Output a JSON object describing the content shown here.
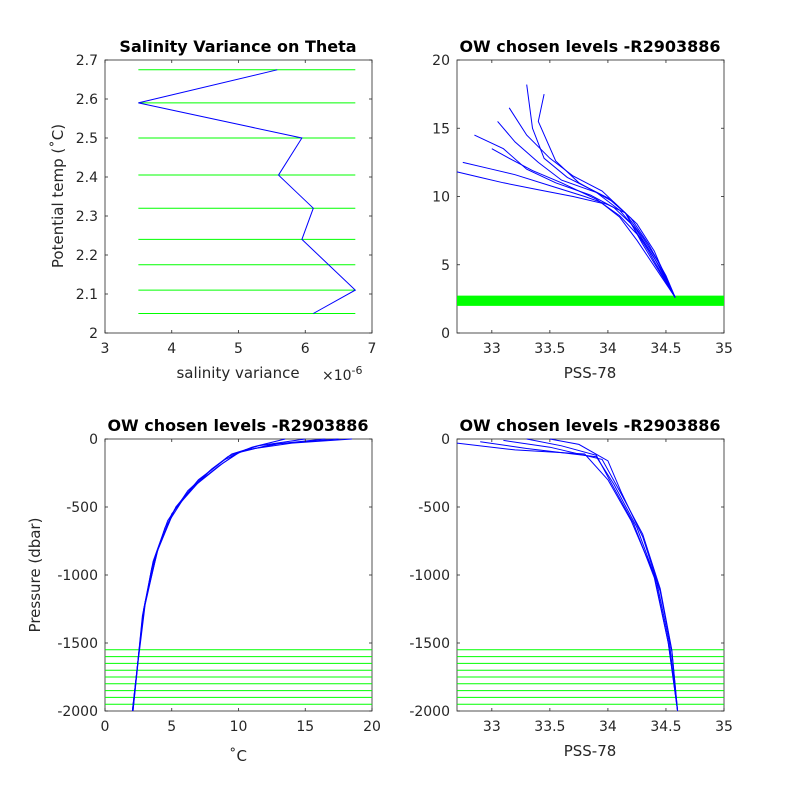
{
  "colors": {
    "profile": "#0000ff",
    "level": "#00ff00",
    "axis": "#262626"
  },
  "chart_data": [
    {
      "id": "variance",
      "type": "line",
      "title": "Salinity Variance on Theta",
      "xlabel": "salinity variance",
      "xexp": "×10",
      "xexp_sup": "-6",
      "ylabel": "Potential temp (˚C)",
      "xlim": [
        3,
        7
      ],
      "ylim": [
        2,
        2.7
      ],
      "xticks": [
        3,
        4,
        5,
        6,
        7
      ],
      "xtick_labels": [
        "3",
        "4",
        "5",
        "6",
        "7"
      ],
      "yticks": [
        2,
        2.1,
        2.2,
        2.3,
        2.4,
        2.5,
        2.6,
        2.7
      ],
      "ytick_labels": [
        "2",
        "2.1",
        "2.2",
        "2.3",
        "2.4",
        "2.5",
        "2.6",
        "2.7"
      ],
      "series": [
        {
          "x": [
            5.58,
            3.5,
            5.95,
            5.6,
            6.12,
            5.95,
            6.75,
            6.12
          ],
          "y": [
            2.675,
            2.59,
            2.5,
            2.405,
            2.32,
            2.24,
            2.11,
            2.05
          ]
        }
      ],
      "chosen_levels": [
        2.675,
        2.59,
        2.5,
        2.405,
        2.32,
        2.24,
        2.175,
        2.11,
        2.05
      ],
      "level_xrange": [
        3.5,
        6.75
      ]
    },
    {
      "id": "theta-sal",
      "type": "line",
      "title": "OW chosen levels -R2903886",
      "xlabel": "PSS-78",
      "ylabel": "",
      "xlim": [
        32.7,
        35
      ],
      "ylim": [
        0,
        20
      ],
      "xticks": [
        33,
        33.5,
        34,
        34.5,
        35
      ],
      "xtick_labels": [
        "33",
        "33.5",
        "34",
        "34.5",
        "35"
      ],
      "yticks": [
        0,
        5,
        10,
        15,
        20
      ],
      "ytick_labels": [
        "0",
        "5",
        "10",
        "15",
        "20"
      ],
      "series": [
        {
          "x": [
            32.75,
            33.0,
            33.2,
            33.5,
            33.8,
            34.0,
            34.15,
            34.3,
            34.58
          ],
          "y": [
            12.5,
            12.0,
            11.6,
            10.8,
            10.0,
            9.4,
            8.8,
            6.5,
            2.6
          ]
        },
        {
          "x": [
            32.85,
            33.1,
            33.3,
            33.55,
            33.85,
            34.05,
            34.2,
            34.35,
            34.58
          ],
          "y": [
            14.5,
            13.5,
            12.0,
            11.0,
            10.1,
            9.2,
            8.0,
            6.0,
            2.6
          ]
        },
        {
          "x": [
            33.05,
            33.2,
            33.4,
            33.6,
            33.9,
            34.1,
            34.25,
            34.4,
            34.58
          ],
          "y": [
            15.5,
            14.0,
            12.5,
            11.2,
            10.3,
            9.0,
            7.5,
            5.5,
            2.6
          ]
        },
        {
          "x": [
            33.15,
            33.3,
            33.5,
            33.7,
            33.95,
            34.15,
            34.3,
            34.45,
            34.58
          ],
          "y": [
            16.5,
            14.5,
            12.8,
            11.5,
            10.4,
            8.8,
            7.0,
            5.0,
            2.6
          ]
        },
        {
          "x": [
            33.3,
            33.35,
            33.45,
            33.65,
            34.0,
            34.2,
            34.35,
            34.5,
            34.58
          ],
          "y": [
            18.2,
            15.0,
            12.8,
            11.4,
            9.9,
            8.4,
            6.5,
            4.2,
            2.6
          ]
        },
        {
          "x": [
            33.45,
            33.4,
            33.55,
            33.75,
            34.05,
            34.25,
            34.4,
            34.5,
            34.58
          ],
          "y": [
            17.5,
            15.5,
            12.6,
            11.0,
            9.6,
            8.0,
            6.0,
            4.0,
            2.6
          ]
        },
        {
          "x": [
            32.7,
            32.9,
            33.1,
            33.4,
            33.7,
            33.95,
            34.1,
            34.25,
            34.58
          ],
          "y": [
            11.8,
            11.4,
            11.0,
            10.5,
            10.0,
            9.5,
            8.5,
            6.8,
            2.6
          ]
        },
        {
          "x": [
            33.0,
            33.15,
            33.35,
            33.6,
            33.9,
            34.1,
            34.3,
            34.45,
            34.58
          ],
          "y": [
            13.5,
            12.8,
            11.9,
            11.0,
            9.8,
            8.6,
            6.8,
            4.8,
            2.6
          ]
        }
      ],
      "chosen_levels": [
        2.05,
        2.11,
        2.175,
        2.24,
        2.32,
        2.405,
        2.5,
        2.59,
        2.675
      ],
      "level_xrange": [
        32.7,
        35
      ]
    },
    {
      "id": "temp-pres",
      "type": "line",
      "title": "OW chosen levels -R2903886",
      "xlabel": "˚C",
      "ylabel": "Pressure (dbar)",
      "xlim": [
        0,
        20
      ],
      "ylim": [
        -2000,
        0
      ],
      "xticks": [
        0,
        5,
        10,
        15,
        20
      ],
      "xtick_labels": [
        "0",
        "5",
        "10",
        "15",
        "20"
      ],
      "yticks": [
        -2000,
        -1500,
        -1000,
        -500,
        0
      ],
      "ytick_labels": [
        "-2000",
        "-1500",
        "-1000",
        "-500",
        "0"
      ],
      "series": [
        {
          "x": [
            18.5,
            14.0,
            10.5,
            9.0,
            7.0,
            5.3,
            4.0,
            3.0,
            2.5,
            2.1
          ],
          "y": [
            0,
            -30,
            -80,
            -150,
            -300,
            -500,
            -800,
            -1200,
            -1600,
            -2000
          ]
        },
        {
          "x": [
            16.5,
            12.5,
            10.0,
            8.5,
            6.6,
            5.0,
            3.8,
            2.9,
            2.45,
            2.05
          ],
          "y": [
            0,
            -40,
            -100,
            -200,
            -350,
            -550,
            -850,
            -1250,
            -1650,
            -2000
          ]
        },
        {
          "x": [
            15.0,
            11.5,
            9.5,
            8.0,
            6.2,
            4.7,
            3.6,
            2.8,
            2.4,
            2.05
          ],
          "y": [
            0,
            -50,
            -110,
            -220,
            -380,
            -600,
            -900,
            -1300,
            -1700,
            -2000
          ]
        },
        {
          "x": [
            17.5,
            13.0,
            10.2,
            8.8,
            6.9,
            5.2,
            3.9,
            3.0,
            2.5,
            2.1
          ],
          "y": [
            0,
            -35,
            -90,
            -180,
            -330,
            -520,
            -830,
            -1220,
            -1620,
            -2000
          ]
        },
        {
          "x": [
            13.5,
            11.0,
            9.2,
            7.7,
            6.0,
            4.5,
            3.5,
            2.8,
            2.4,
            2.05
          ],
          "y": [
            0,
            -60,
            -130,
            -250,
            -420,
            -650,
            -950,
            -1320,
            -1700,
            -2000
          ]
        }
      ],
      "chosen_levels": [
        -1550,
        -1600,
        -1650,
        -1700,
        -1750,
        -1800,
        -1850,
        -1900,
        -1950
      ],
      "level_xrange": [
        0,
        20
      ]
    },
    {
      "id": "sal-pres",
      "type": "line",
      "title": "OW chosen levels -R2903886",
      "xlabel": "PSS-78",
      "ylabel": "",
      "xlim": [
        32.7,
        35
      ],
      "ylim": [
        -2000,
        0
      ],
      "xticks": [
        33,
        33.5,
        34,
        34.5,
        35
      ],
      "xtick_labels": [
        "33",
        "33.5",
        "34",
        "34.5",
        "35"
      ],
      "yticks": [
        -2000,
        -1500,
        -1000,
        -500,
        0
      ],
      "ytick_labels": [
        "-2000",
        "-1500",
        "-1000",
        "-500",
        "0"
      ],
      "series": [
        {
          "x": [
            32.7,
            33.2,
            33.8,
            34.0,
            34.2,
            34.4,
            34.52,
            34.6
          ],
          "y": [
            -30,
            -80,
            -110,
            -300,
            -600,
            -1000,
            -1500,
            -2000
          ]
        },
        {
          "x": [
            32.9,
            33.3,
            33.9,
            34.05,
            34.25,
            34.42,
            34.53,
            34.6
          ],
          "y": [
            -20,
            -70,
            -130,
            -330,
            -650,
            -1050,
            -1500,
            -2000
          ]
        },
        {
          "x": [
            33.1,
            33.5,
            33.95,
            34.1,
            34.3,
            34.45,
            34.55,
            34.6
          ],
          "y": [
            -10,
            -60,
            -150,
            -380,
            -700,
            -1100,
            -1550,
            -2000
          ]
        },
        {
          "x": [
            33.3,
            33.6,
            33.9,
            34.02,
            34.22,
            34.4,
            34.52,
            34.6
          ],
          "y": [
            0,
            -50,
            -120,
            -310,
            -620,
            -1020,
            -1500,
            -2000
          ]
        },
        {
          "x": [
            33.5,
            33.75,
            34.0,
            34.12,
            34.3,
            34.45,
            34.55,
            34.6
          ],
          "y": [
            0,
            -40,
            -160,
            -400,
            -720,
            -1120,
            -1560,
            -2000
          ]
        }
      ],
      "chosen_levels": [
        -1550,
        -1600,
        -1650,
        -1700,
        -1750,
        -1800,
        -1850,
        -1900,
        -1950
      ],
      "level_xrange": [
        32.7,
        35
      ]
    }
  ]
}
